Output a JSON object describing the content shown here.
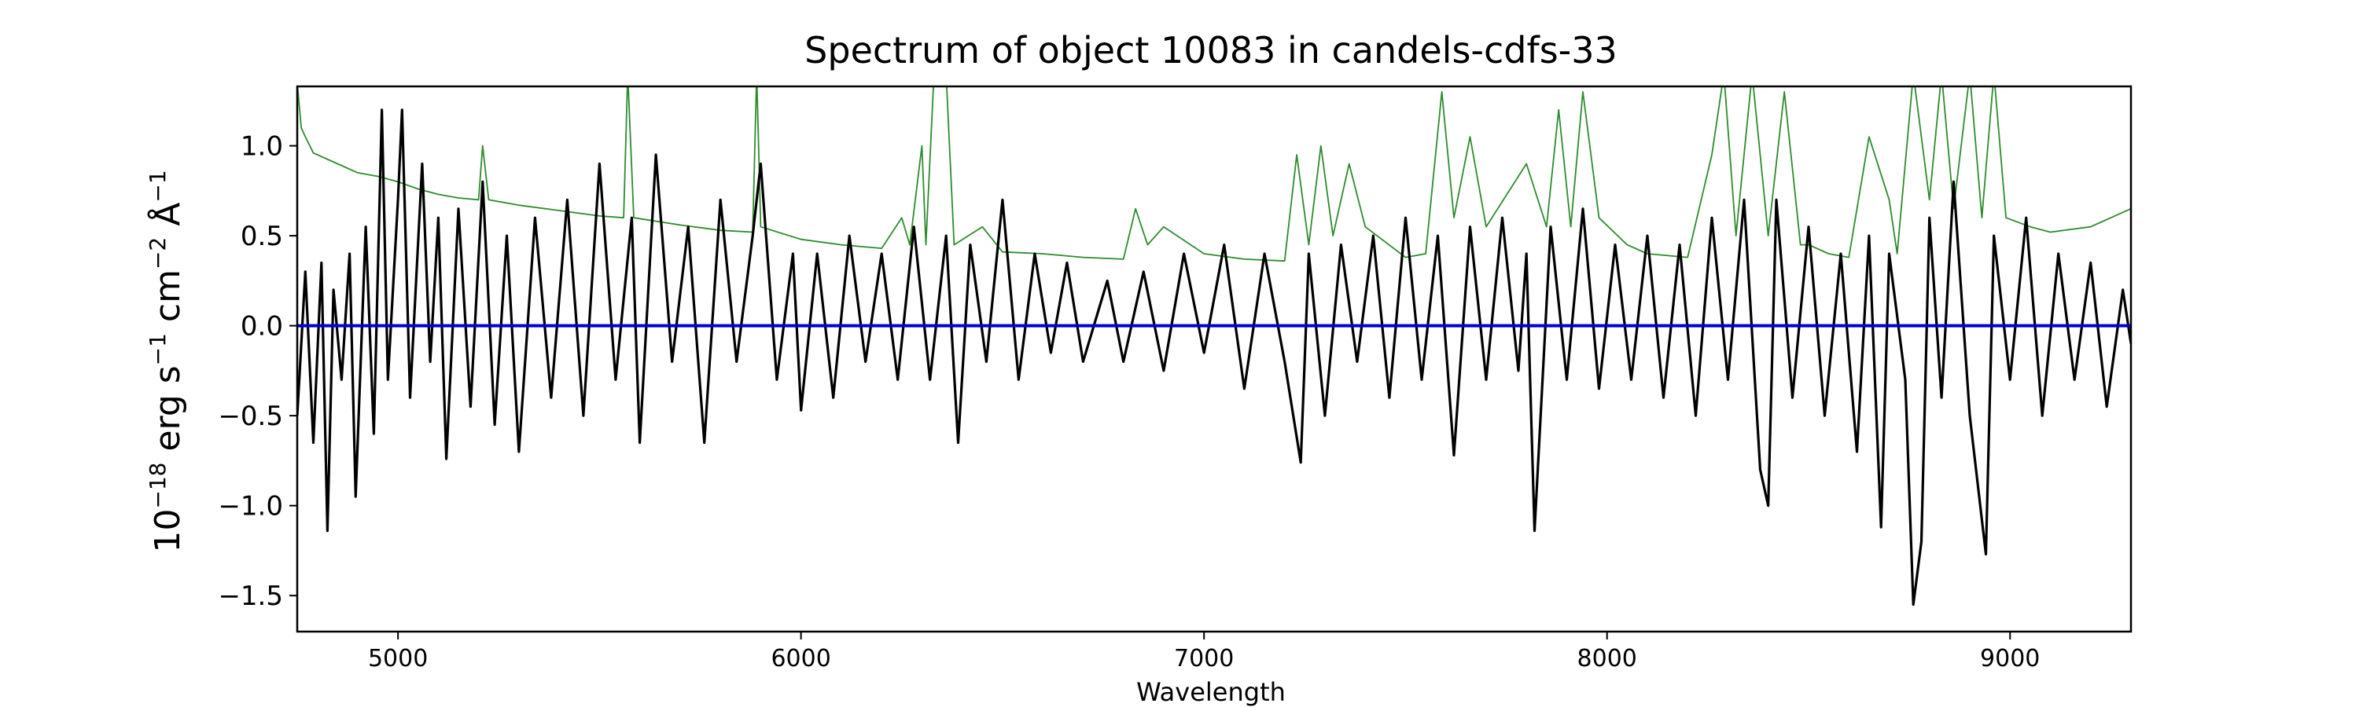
{
  "chart_data": {
    "type": "line",
    "title": "Spectrum of object 10083 in candels-cdfs-33",
    "xlabel": "Wavelength",
    "ylabel": {
      "base": "10",
      "exp1": "−18",
      "text1": " erg s",
      "exp2": "−1",
      "text2": " cm",
      "exp3": "−2",
      "text3": " Å",
      "exp4": "−1"
    },
    "xlim": [
      4750,
      9300
    ],
    "ylim": [
      -1.7,
      1.33
    ],
    "xticks": [
      5000,
      6000,
      7000,
      8000,
      9000
    ],
    "xtick_labels": [
      "5000",
      "6000",
      "7000",
      "8000",
      "9000"
    ],
    "yticks": [
      -1.5,
      -1.0,
      -0.5,
      0.0,
      0.5,
      1.0
    ],
    "ytick_labels": [
      "−1.5",
      "−1.0",
      "−0.5",
      "0.0",
      "0.5",
      "1.0"
    ],
    "grid": false,
    "legend": "none",
    "series": [
      {
        "role": "error",
        "color": "#2e8b2e",
        "points": [
          [
            4750,
            1.35
          ],
          [
            4760,
            1.1
          ],
          [
            4770,
            1.05
          ],
          [
            4790,
            0.96
          ],
          [
            4850,
            0.9
          ],
          [
            4900,
            0.85
          ],
          [
            4950,
            0.83
          ],
          [
            5000,
            0.8
          ],
          [
            5050,
            0.76
          ],
          [
            5100,
            0.73
          ],
          [
            5150,
            0.71
          ],
          [
            5200,
            0.7
          ],
          [
            5210,
            1.0
          ],
          [
            5225,
            0.7
          ],
          [
            5300,
            0.67
          ],
          [
            5400,
            0.64
          ],
          [
            5500,
            0.61
          ],
          [
            5560,
            0.6
          ],
          [
            5570,
            1.4
          ],
          [
            5585,
            0.6
          ],
          [
            5700,
            0.56
          ],
          [
            5800,
            0.53
          ],
          [
            5880,
            0.52
          ],
          [
            5890,
            1.4
          ],
          [
            5900,
            0.55
          ],
          [
            6000,
            0.48
          ],
          [
            6100,
            0.45
          ],
          [
            6200,
            0.43
          ],
          [
            6250,
            0.6
          ],
          [
            6270,
            0.45
          ],
          [
            6300,
            1.0
          ],
          [
            6310,
            0.45
          ],
          [
            6330,
            1.4
          ],
          [
            6360,
            1.4
          ],
          [
            6380,
            0.45
          ],
          [
            6450,
            0.55
          ],
          [
            6500,
            0.41
          ],
          [
            6600,
            0.4
          ],
          [
            6700,
            0.38
          ],
          [
            6800,
            0.37
          ],
          [
            6830,
            0.65
          ],
          [
            6860,
            0.45
          ],
          [
            6900,
            0.55
          ],
          [
            7000,
            0.4
          ],
          [
            7100,
            0.37
          ],
          [
            7200,
            0.36
          ],
          [
            7230,
            0.95
          ],
          [
            7260,
            0.45
          ],
          [
            7290,
            1.0
          ],
          [
            7320,
            0.5
          ],
          [
            7360,
            0.9
          ],
          [
            7400,
            0.55
          ],
          [
            7500,
            0.38
          ],
          [
            7550,
            0.4
          ],
          [
            7590,
            1.3
          ],
          [
            7620,
            0.6
          ],
          [
            7660,
            1.05
          ],
          [
            7700,
            0.55
          ],
          [
            7800,
            0.9
          ],
          [
            7850,
            0.55
          ],
          [
            7880,
            1.2
          ],
          [
            7910,
            0.55
          ],
          [
            7940,
            1.3
          ],
          [
            7980,
            0.6
          ],
          [
            8050,
            0.45
          ],
          [
            8100,
            0.4
          ],
          [
            8200,
            0.38
          ],
          [
            8260,
            0.95
          ],
          [
            8290,
            1.4
          ],
          [
            8320,
            0.5
          ],
          [
            8360,
            1.4
          ],
          [
            8400,
            0.5
          ],
          [
            8440,
            1.3
          ],
          [
            8480,
            0.45
          ],
          [
            8500,
            0.45
          ],
          [
            8550,
            0.4
          ],
          [
            8600,
            0.38
          ],
          [
            8650,
            1.05
          ],
          [
            8700,
            0.7
          ],
          [
            8720,
            0.4
          ],
          [
            8760,
            1.4
          ],
          [
            8800,
            0.7
          ],
          [
            8830,
            1.4
          ],
          [
            8860,
            0.65
          ],
          [
            8900,
            1.4
          ],
          [
            8930,
            0.6
          ],
          [
            8960,
            1.4
          ],
          [
            8990,
            0.6
          ],
          [
            9050,
            0.55
          ],
          [
            9100,
            0.52
          ],
          [
            9200,
            0.55
          ],
          [
            9250,
            0.6
          ],
          [
            9300,
            0.65
          ]
        ]
      },
      {
        "role": "flux",
        "color": "#000000",
        "points": [
          [
            4750,
            -0.5
          ],
          [
            4770,
            0.3
          ],
          [
            4790,
            -0.65
          ],
          [
            4810,
            0.35
          ],
          [
            4825,
            -1.14
          ],
          [
            4840,
            0.2
          ],
          [
            4860,
            -0.3
          ],
          [
            4880,
            0.4
          ],
          [
            4895,
            -0.95
          ],
          [
            4920,
            0.55
          ],
          [
            4940,
            -0.6
          ],
          [
            4960,
            1.2
          ],
          [
            4975,
            -0.3
          ],
          [
            5000,
            0.7
          ],
          [
            5010,
            1.2
          ],
          [
            5030,
            -0.4
          ],
          [
            5060,
            0.9
          ],
          [
            5080,
            -0.2
          ],
          [
            5100,
            0.6
          ],
          [
            5120,
            -0.74
          ],
          [
            5150,
            0.65
          ],
          [
            5180,
            -0.45
          ],
          [
            5210,
            0.8
          ],
          [
            5240,
            -0.55
          ],
          [
            5270,
            0.5
          ],
          [
            5300,
            -0.7
          ],
          [
            5340,
            0.6
          ],
          [
            5380,
            -0.4
          ],
          [
            5420,
            0.7
          ],
          [
            5460,
            -0.5
          ],
          [
            5500,
            0.9
          ],
          [
            5540,
            -0.3
          ],
          [
            5580,
            0.6
          ],
          [
            5600,
            -0.65
          ],
          [
            5640,
            0.95
          ],
          [
            5680,
            -0.2
          ],
          [
            5720,
            0.55
          ],
          [
            5760,
            -0.65
          ],
          [
            5800,
            0.7
          ],
          [
            5840,
            -0.2
          ],
          [
            5880,
            0.5
          ],
          [
            5900,
            0.9
          ],
          [
            5940,
            -0.3
          ],
          [
            5980,
            0.4
          ],
          [
            6000,
            -0.47
          ],
          [
            6040,
            0.4
          ],
          [
            6080,
            -0.4
          ],
          [
            6120,
            0.5
          ],
          [
            6160,
            -0.2
          ],
          [
            6200,
            0.4
          ],
          [
            6240,
            -0.3
          ],
          [
            6280,
            0.55
          ],
          [
            6320,
            -0.3
          ],
          [
            6360,
            0.5
          ],
          [
            6390,
            -0.65
          ],
          [
            6420,
            0.45
          ],
          [
            6460,
            -0.2
          ],
          [
            6500,
            0.7
          ],
          [
            6540,
            -0.3
          ],
          [
            6580,
            0.4
          ],
          [
            6620,
            -0.15
          ],
          [
            6660,
            0.35
          ],
          [
            6700,
            -0.2
          ],
          [
            6760,
            0.25
          ],
          [
            6800,
            -0.2
          ],
          [
            6850,
            0.3
          ],
          [
            6900,
            -0.25
          ],
          [
            6950,
            0.4
          ],
          [
            7000,
            -0.15
          ],
          [
            7050,
            0.45
          ],
          [
            7100,
            -0.35
          ],
          [
            7150,
            0.4
          ],
          [
            7200,
            -0.2
          ],
          [
            7240,
            -0.76
          ],
          [
            7260,
            0.4
          ],
          [
            7300,
            -0.5
          ],
          [
            7340,
            0.45
          ],
          [
            7380,
            -0.2
          ],
          [
            7420,
            0.5
          ],
          [
            7460,
            -0.4
          ],
          [
            7500,
            0.6
          ],
          [
            7540,
            -0.3
          ],
          [
            7580,
            0.5
          ],
          [
            7620,
            -0.72
          ],
          [
            7660,
            0.55
          ],
          [
            7700,
            -0.3
          ],
          [
            7740,
            0.6
          ],
          [
            7780,
            -0.25
          ],
          [
            7800,
            0.4
          ],
          [
            7820,
            -1.14
          ],
          [
            7860,
            0.55
          ],
          [
            7900,
            -0.3
          ],
          [
            7940,
            0.65
          ],
          [
            7980,
            -0.35
          ],
          [
            8020,
            0.45
          ],
          [
            8060,
            -0.3
          ],
          [
            8100,
            0.5
          ],
          [
            8140,
            -0.4
          ],
          [
            8180,
            0.45
          ],
          [
            8220,
            -0.5
          ],
          [
            8260,
            0.6
          ],
          [
            8300,
            -0.3
          ],
          [
            8340,
            0.7
          ],
          [
            8380,
            -0.8
          ],
          [
            8400,
            -1.0
          ],
          [
            8420,
            0.7
          ],
          [
            8460,
            -0.4
          ],
          [
            8500,
            0.55
          ],
          [
            8540,
            -0.5
          ],
          [
            8580,
            0.4
          ],
          [
            8620,
            -0.7
          ],
          [
            8650,
            0.5
          ],
          [
            8680,
            -1.12
          ],
          [
            8700,
            0.4
          ],
          [
            8740,
            -0.3
          ],
          [
            8760,
            -1.55
          ],
          [
            8780,
            -1.2
          ],
          [
            8800,
            0.6
          ],
          [
            8830,
            -0.4
          ],
          [
            8860,
            0.8
          ],
          [
            8900,
            -0.5
          ],
          [
            8940,
            -1.27
          ],
          [
            8960,
            0.5
          ],
          [
            9000,
            -0.3
          ],
          [
            9040,
            0.6
          ],
          [
            9080,
            -0.5
          ],
          [
            9120,
            0.4
          ],
          [
            9160,
            -0.3
          ],
          [
            9200,
            0.35
          ],
          [
            9240,
            -0.45
          ],
          [
            9280,
            0.2
          ],
          [
            9300,
            -0.1
          ]
        ]
      },
      {
        "role": "model",
        "color": "#0000cc",
        "points": [
          [
            4750,
            0.0
          ],
          [
            9300,
            0.0
          ]
        ]
      }
    ]
  }
}
